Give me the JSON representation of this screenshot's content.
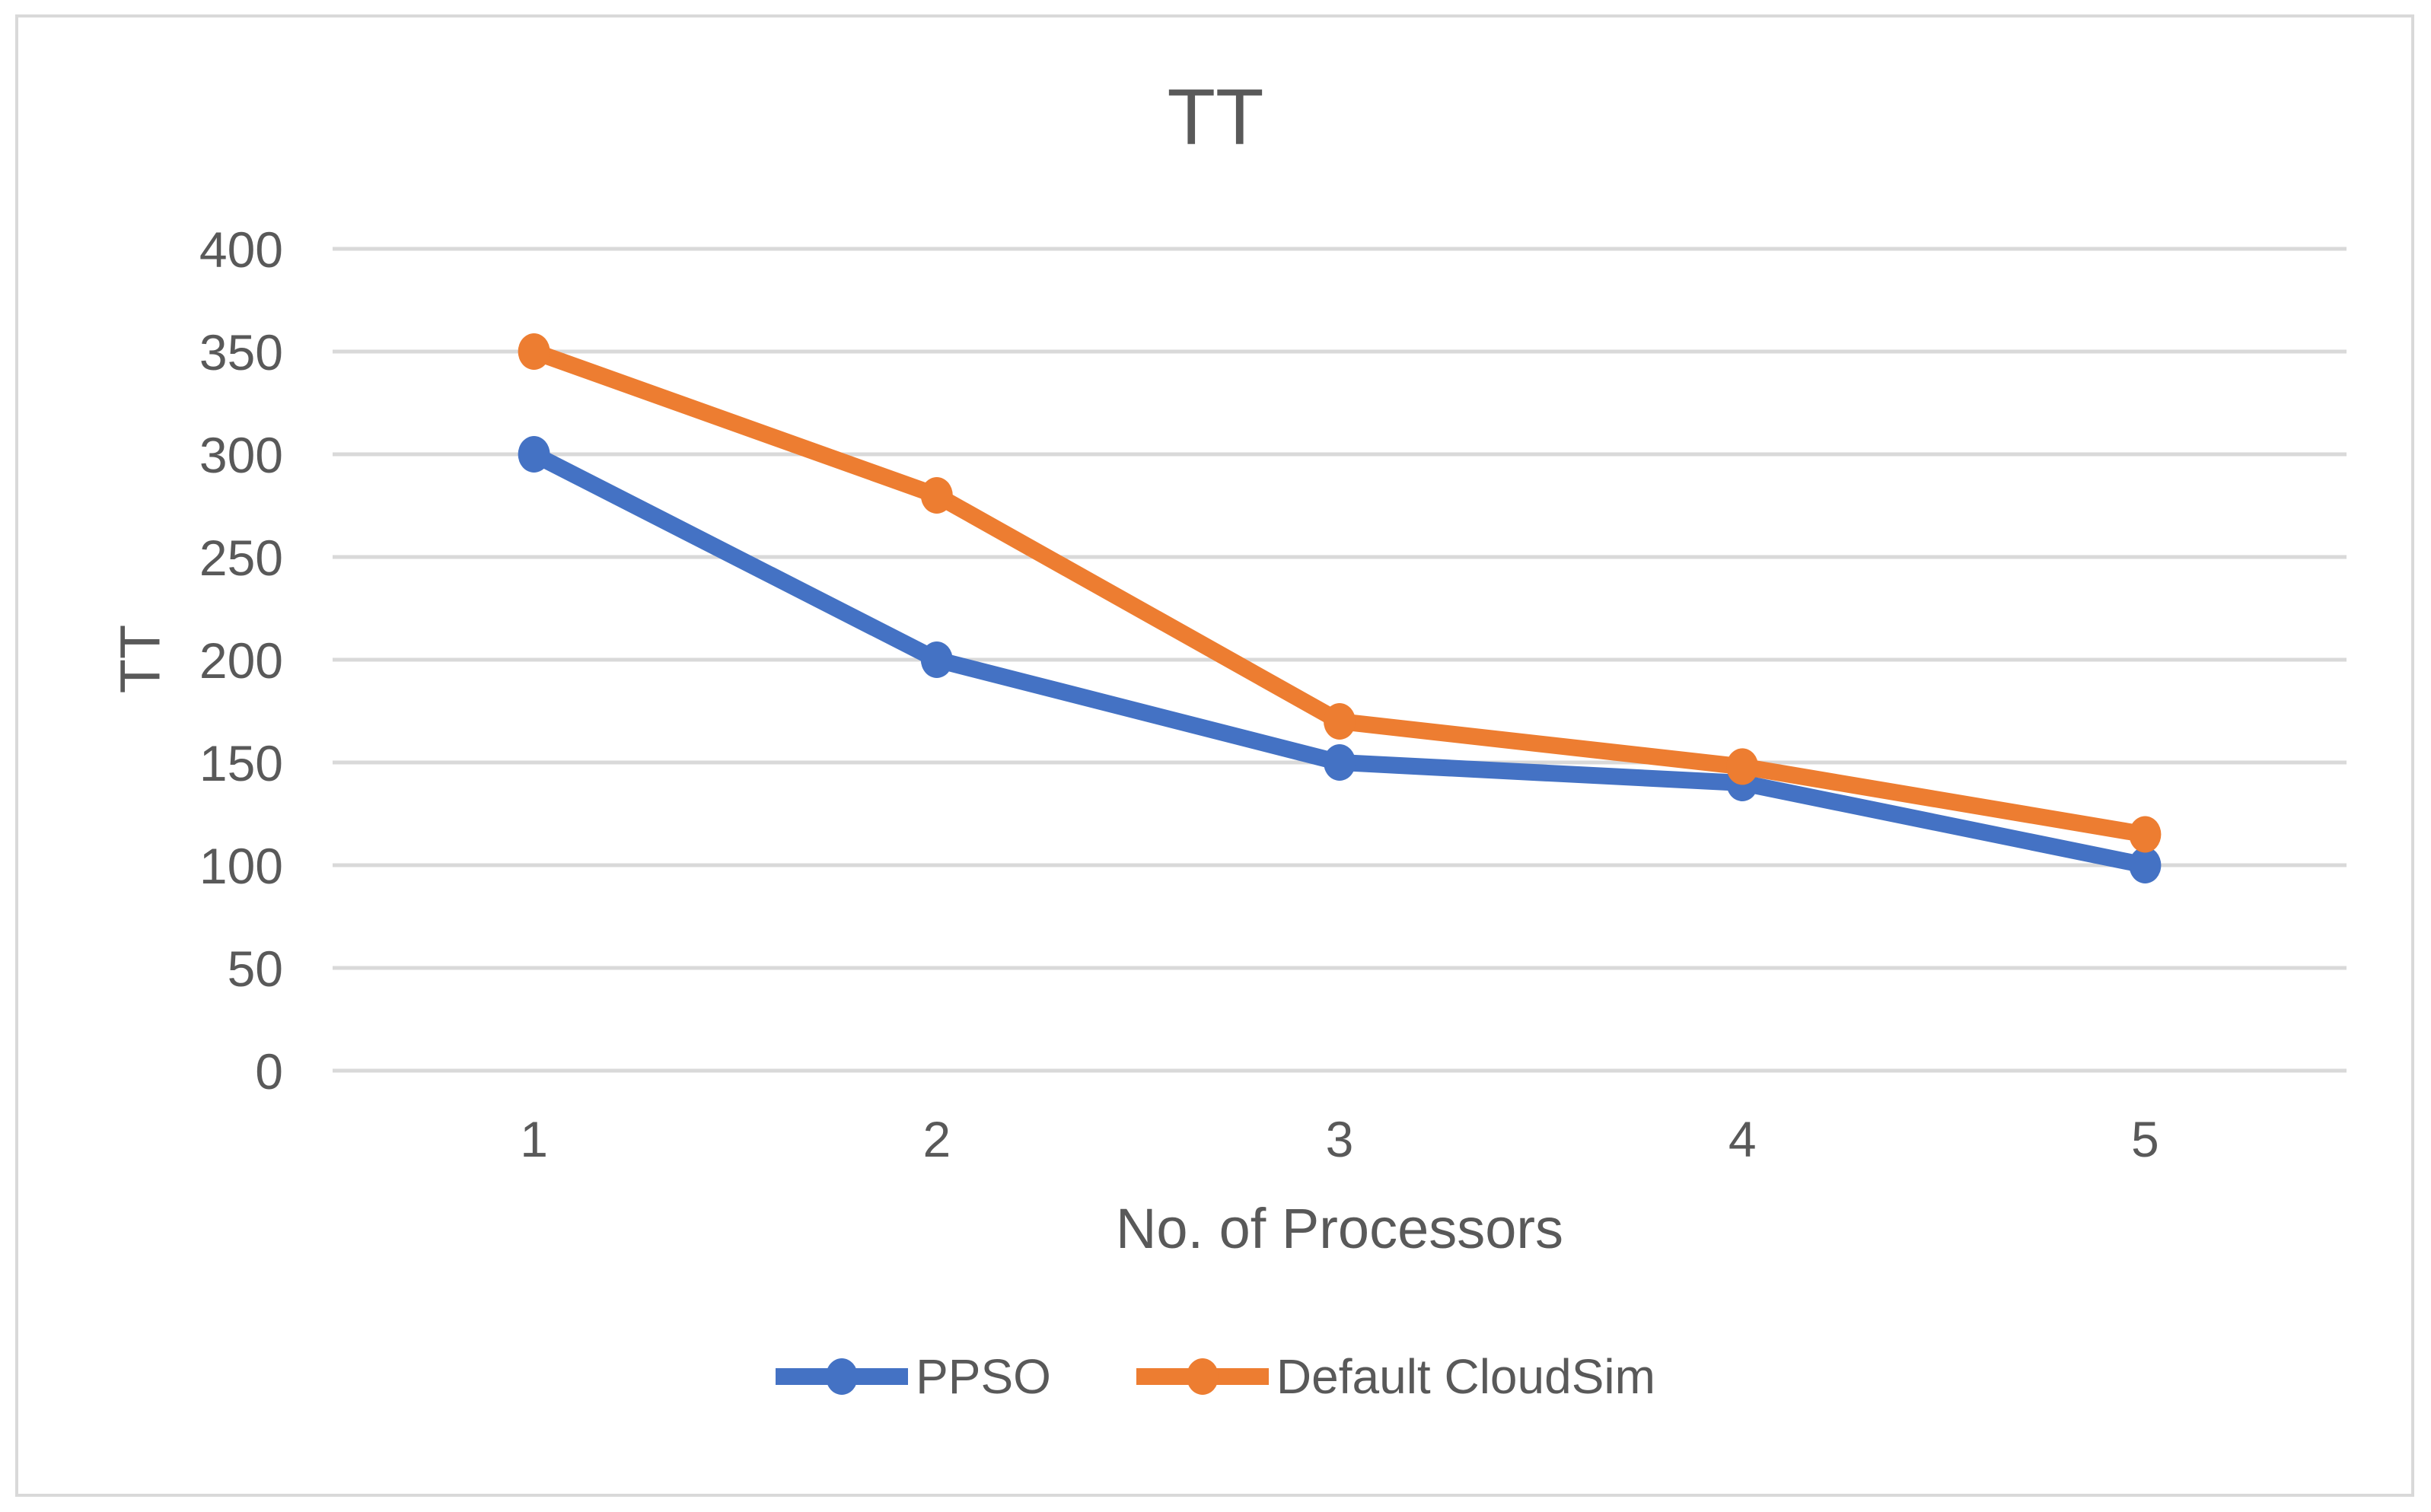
{
  "chart_data": {
    "type": "line",
    "title": "TT",
    "xlabel": "No. of Processors",
    "ylabel": "TT",
    "categories": [
      "1",
      "2",
      "3",
      "4",
      "5"
    ],
    "series": [
      {
        "name": "PPSO",
        "color": "#4472C4",
        "values": [
          300,
          200,
          150,
          140,
          100
        ]
      },
      {
        "name": "Default CloudSim",
        "color": "#ED7D31",
        "values": [
          350,
          280,
          170,
          148,
          115
        ]
      }
    ],
    "ylim": [
      0,
      400
    ],
    "ytick_step": 50,
    "yticks": [
      0,
      50,
      100,
      150,
      200,
      250,
      300,
      350,
      400
    ],
    "grid": true,
    "legend_position": "bottom",
    "marker": "circle",
    "colors": {
      "text": "#595959",
      "gridline": "#D9D9D9",
      "border": "#D9D9D9",
      "background": "#FFFFFF"
    }
  }
}
